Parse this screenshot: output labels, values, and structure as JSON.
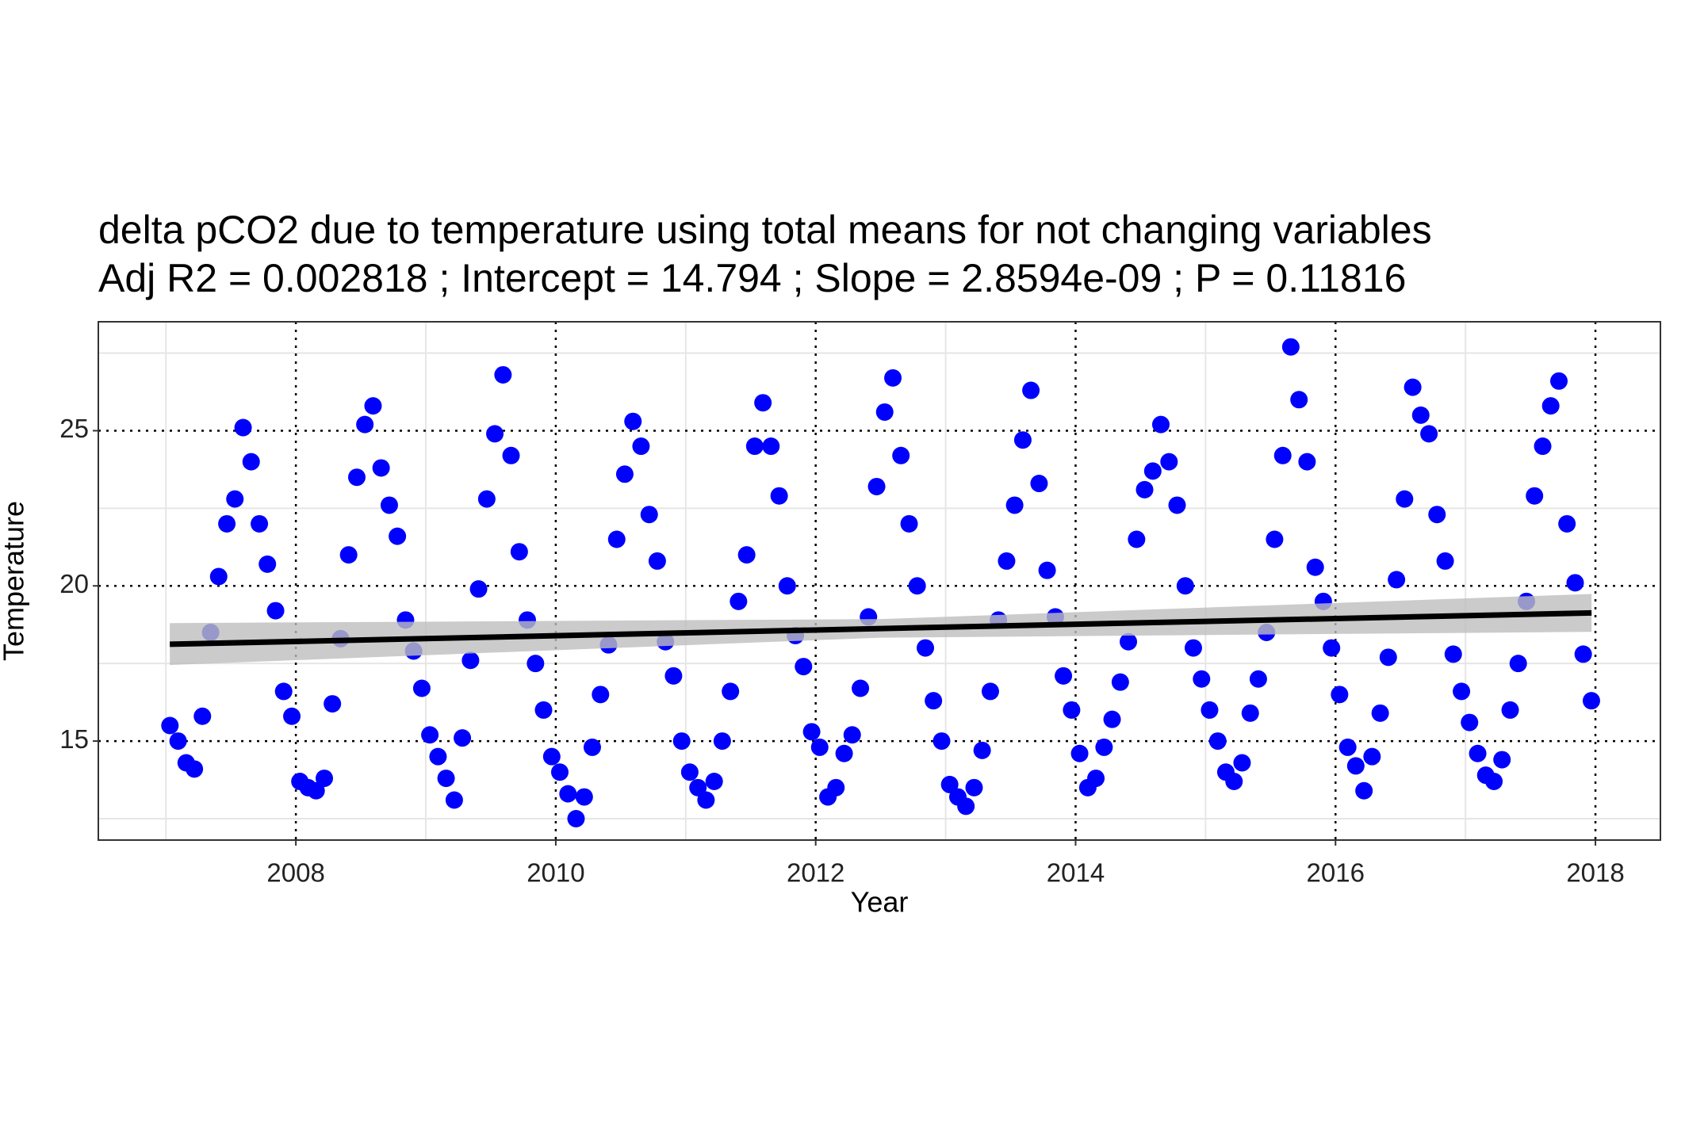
{
  "chart_data": {
    "type": "scatter",
    "title": "delta pCO2 due to temperature using total means for not changing variables",
    "subtitle": "Adj R2 =  0.002818 ; Intercept = 14.794 ; Slope = 2.8594e-09 ; P = 0.11816",
    "x_label": "Year",
    "y_label": "Temperature",
    "xlim": [
      2006.48,
      2018.5
    ],
    "ylim": [
      11.81,
      28.51
    ],
    "xticks": [
      2008,
      2010,
      2012,
      2014,
      2016,
      2018
    ],
    "yticks": [
      15,
      20,
      25
    ],
    "grid": true,
    "series": [
      {
        "name": "Temperature",
        "color": "#0000ff",
        "x": [
          2007.031,
          2007.094,
          2007.156,
          2007.219,
          2007.281,
          2007.344,
          2007.406,
          2007.469,
          2007.531,
          2007.594,
          2007.656,
          2007.719,
          2007.781,
          2007.844,
          2007.906,
          2007.969,
          2008.031,
          2008.094,
          2008.156,
          2008.219,
          2008.281,
          2008.344,
          2008.406,
          2008.469,
          2008.531,
          2008.594,
          2008.656,
          2008.719,
          2008.781,
          2008.844,
          2008.906,
          2008.969,
          2009.031,
          2009.094,
          2009.156,
          2009.219,
          2009.281,
          2009.344,
          2009.406,
          2009.469,
          2009.531,
          2009.594,
          2009.656,
          2009.719,
          2009.781,
          2009.844,
          2009.906,
          2009.969,
          2010.031,
          2010.094,
          2010.156,
          2010.219,
          2010.281,
          2010.344,
          2010.406,
          2010.469,
          2010.531,
          2010.594,
          2010.656,
          2010.719,
          2010.781,
          2010.844,
          2010.906,
          2010.969,
          2011.031,
          2011.094,
          2011.156,
          2011.219,
          2011.281,
          2011.344,
          2011.406,
          2011.469,
          2011.531,
          2011.594,
          2011.656,
          2011.719,
          2011.781,
          2011.844,
          2011.906,
          2011.969,
          2012.031,
          2012.094,
          2012.156,
          2012.219,
          2012.281,
          2012.344,
          2012.406,
          2012.469,
          2012.531,
          2012.594,
          2012.656,
          2012.719,
          2012.781,
          2012.844,
          2012.906,
          2012.969,
          2013.031,
          2013.094,
          2013.156,
          2013.219,
          2013.281,
          2013.344,
          2013.406,
          2013.469,
          2013.531,
          2013.594,
          2013.656,
          2013.719,
          2013.781,
          2013.844,
          2013.906,
          2013.969,
          2014.031,
          2014.094,
          2014.156,
          2014.219,
          2014.281,
          2014.344,
          2014.406,
          2014.469,
          2014.531,
          2014.594,
          2014.656,
          2014.719,
          2014.781,
          2014.844,
          2014.906,
          2014.969,
          2015.031,
          2015.094,
          2015.156,
          2015.219,
          2015.281,
          2015.344,
          2015.406,
          2015.469,
          2015.531,
          2015.594,
          2015.656,
          2015.719,
          2015.781,
          2015.844,
          2015.906,
          2015.969,
          2016.031,
          2016.094,
          2016.156,
          2016.219,
          2016.281,
          2016.344,
          2016.406,
          2016.469,
          2016.531,
          2016.594,
          2016.656,
          2016.719,
          2016.781,
          2016.844,
          2016.906,
          2016.969,
          2017.031,
          2017.094,
          2017.156,
          2017.219,
          2017.281,
          2017.344,
          2017.406,
          2017.469,
          2017.531,
          2017.594,
          2017.656,
          2017.719,
          2017.781,
          2017.844,
          2017.906,
          2017.969
        ],
        "values": [
          15.5,
          15.0,
          14.3,
          14.1,
          15.8,
          18.5,
          20.3,
          22.0,
          22.8,
          25.1,
          24.0,
          22.0,
          20.7,
          19.2,
          16.6,
          15.8,
          13.7,
          13.5,
          13.4,
          13.8,
          16.2,
          18.3,
          21.0,
          23.5,
          25.2,
          25.8,
          23.8,
          22.6,
          21.6,
          18.9,
          17.9,
          16.7,
          15.2,
          14.5,
          13.8,
          13.1,
          15.1,
          17.6,
          19.9,
          22.8,
          24.9,
          26.8,
          24.2,
          21.1,
          18.9,
          17.5,
          16.0,
          14.5,
          14.0,
          13.3,
          12.5,
          13.2,
          14.8,
          16.5,
          18.1,
          21.5,
          23.6,
          25.3,
          24.5,
          22.3,
          20.8,
          18.2,
          17.1,
          15.0,
          14.0,
          13.5,
          13.1,
          13.7,
          15.0,
          16.6,
          19.5,
          21.0,
          24.5,
          25.9,
          24.5,
          22.9,
          20.0,
          18.4,
          17.4,
          15.3,
          14.8,
          13.2,
          13.5,
          14.6,
          15.2,
          16.7,
          19.0,
          23.2,
          25.6,
          26.7,
          24.2,
          22.0,
          20.0,
          18.0,
          16.3,
          15.0,
          13.6,
          13.2,
          12.9,
          13.5,
          14.7,
          16.6,
          18.9,
          20.8,
          22.6,
          24.7,
          26.3,
          23.3,
          20.5,
          19.0,
          17.1,
          16.0,
          14.6,
          13.5,
          13.8,
          14.8,
          15.7,
          16.9,
          18.2,
          21.5,
          23.1,
          23.7,
          25.2,
          24.0,
          22.6,
          20.0,
          18.0,
          17.0,
          16.0,
          15.0,
          14.0,
          13.7,
          14.3,
          15.9,
          17.0,
          18.5,
          21.5,
          24.2,
          27.7,
          26.0,
          24.0,
          20.6,
          19.5,
          18.0,
          16.5,
          14.8,
          14.2,
          13.4,
          14.5,
          15.9,
          17.7,
          20.2,
          22.8,
          26.4,
          25.5,
          24.9,
          22.3,
          20.8,
          17.8,
          16.6,
          15.6,
          14.6,
          13.9,
          13.7,
          14.4,
          16.0,
          17.5,
          19.5,
          22.9,
          24.5,
          25.8,
          26.6,
          22.0,
          20.1,
          17.8,
          16.3
        ]
      }
    ],
    "fit": {
      "color": "#000000",
      "x": [
        2007.03,
        2017.97
      ],
      "values": [
        18.12,
        19.13
      ],
      "band_color": "#bebebe",
      "band_x": [
        2007.03,
        2012.5,
        2017.97
      ],
      "band_lower": [
        17.45,
        18.33,
        18.52
      ],
      "band_upper": [
        18.8,
        18.93,
        19.74
      ]
    }
  }
}
